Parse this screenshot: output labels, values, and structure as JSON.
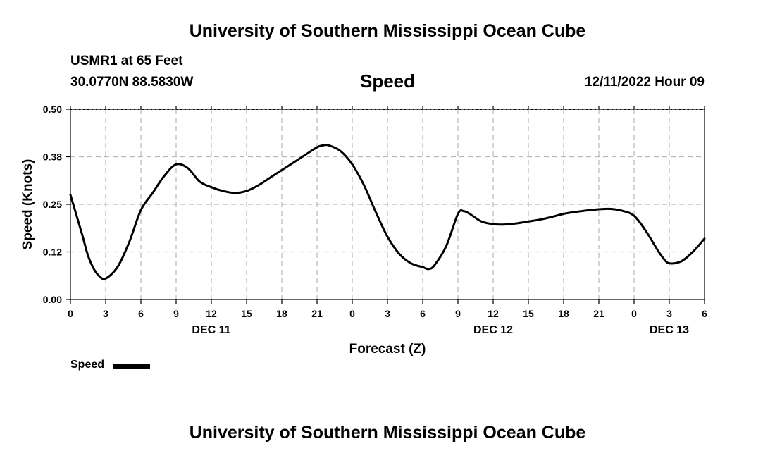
{
  "header": {
    "title": "University of Southern Mississippi Ocean Cube",
    "station": "USMR1 at 65 Feet",
    "coords": "30.0770N  88.5830W",
    "chart_title": "Speed",
    "datetime": "12/11/2022 Hour 09"
  },
  "footer": {
    "title": "University of Southern Mississippi Ocean Cube"
  },
  "legend": {
    "label": "Speed",
    "color": "#000000"
  },
  "chart_data": {
    "type": "line",
    "title": "Speed",
    "xlabel": "Forecast (Z)",
    "ylabel": "Speed (Knots)",
    "xlim": [
      0,
      54
    ],
    "ylim": [
      0,
      0.5
    ],
    "yticks": [
      "0.00",
      "0.12",
      "0.25",
      "0.38",
      "0.50"
    ],
    "ytick_values": [
      0,
      0.125,
      0.25,
      0.375,
      0.5
    ],
    "xtick_values": [
      0,
      3,
      6,
      9,
      12,
      15,
      18,
      21,
      24,
      27,
      30,
      33,
      36,
      39,
      42,
      45,
      48,
      51,
      54
    ],
    "xtick_labels": [
      "0",
      "3",
      "6",
      "9",
      "12",
      "15",
      "18",
      "21",
      "0",
      "3",
      "6",
      "9",
      "12",
      "15",
      "18",
      "21",
      "0",
      "3",
      "6"
    ],
    "date_labels": [
      {
        "x": 12,
        "label": "DEC 11"
      },
      {
        "x": 36,
        "label": "DEC 12"
      },
      {
        "x": 51,
        "label": "DEC 13"
      }
    ],
    "grid": true,
    "legend_position": "bottom-left",
    "series": [
      {
        "name": "Speed",
        "color": "#000000",
        "x": [
          0,
          1,
          1.5,
          2,
          2.5,
          3,
          4,
          5,
          6,
          7,
          8,
          9,
          10,
          11,
          12,
          13,
          14,
          15,
          16,
          17,
          18,
          19,
          20,
          21,
          21.5,
          22,
          23,
          24,
          25,
          26,
          27,
          28,
          29,
          30,
          30.5,
          31,
          32,
          33,
          33.5,
          34,
          35,
          36,
          37,
          38,
          39,
          40,
          41,
          42,
          43,
          44,
          45,
          46,
          47,
          48,
          49,
          50,
          50.5,
          51,
          52,
          53,
          54
        ],
        "values": [
          0.275,
          0.17,
          0.115,
          0.08,
          0.06,
          0.055,
          0.085,
          0.15,
          0.235,
          0.28,
          0.325,
          0.355,
          0.345,
          0.31,
          0.295,
          0.285,
          0.28,
          0.285,
          0.3,
          0.32,
          0.34,
          0.36,
          0.38,
          0.4,
          0.405,
          0.405,
          0.39,
          0.355,
          0.3,
          0.23,
          0.165,
          0.12,
          0.095,
          0.085,
          0.08,
          0.09,
          0.14,
          0.225,
          0.232,
          0.225,
          0.205,
          0.198,
          0.197,
          0.2,
          0.205,
          0.21,
          0.217,
          0.225,
          0.23,
          0.234,
          0.237,
          0.238,
          0.233,
          0.22,
          0.18,
          0.13,
          0.108,
          0.095,
          0.1,
          0.125,
          0.16
        ]
      }
    ]
  }
}
